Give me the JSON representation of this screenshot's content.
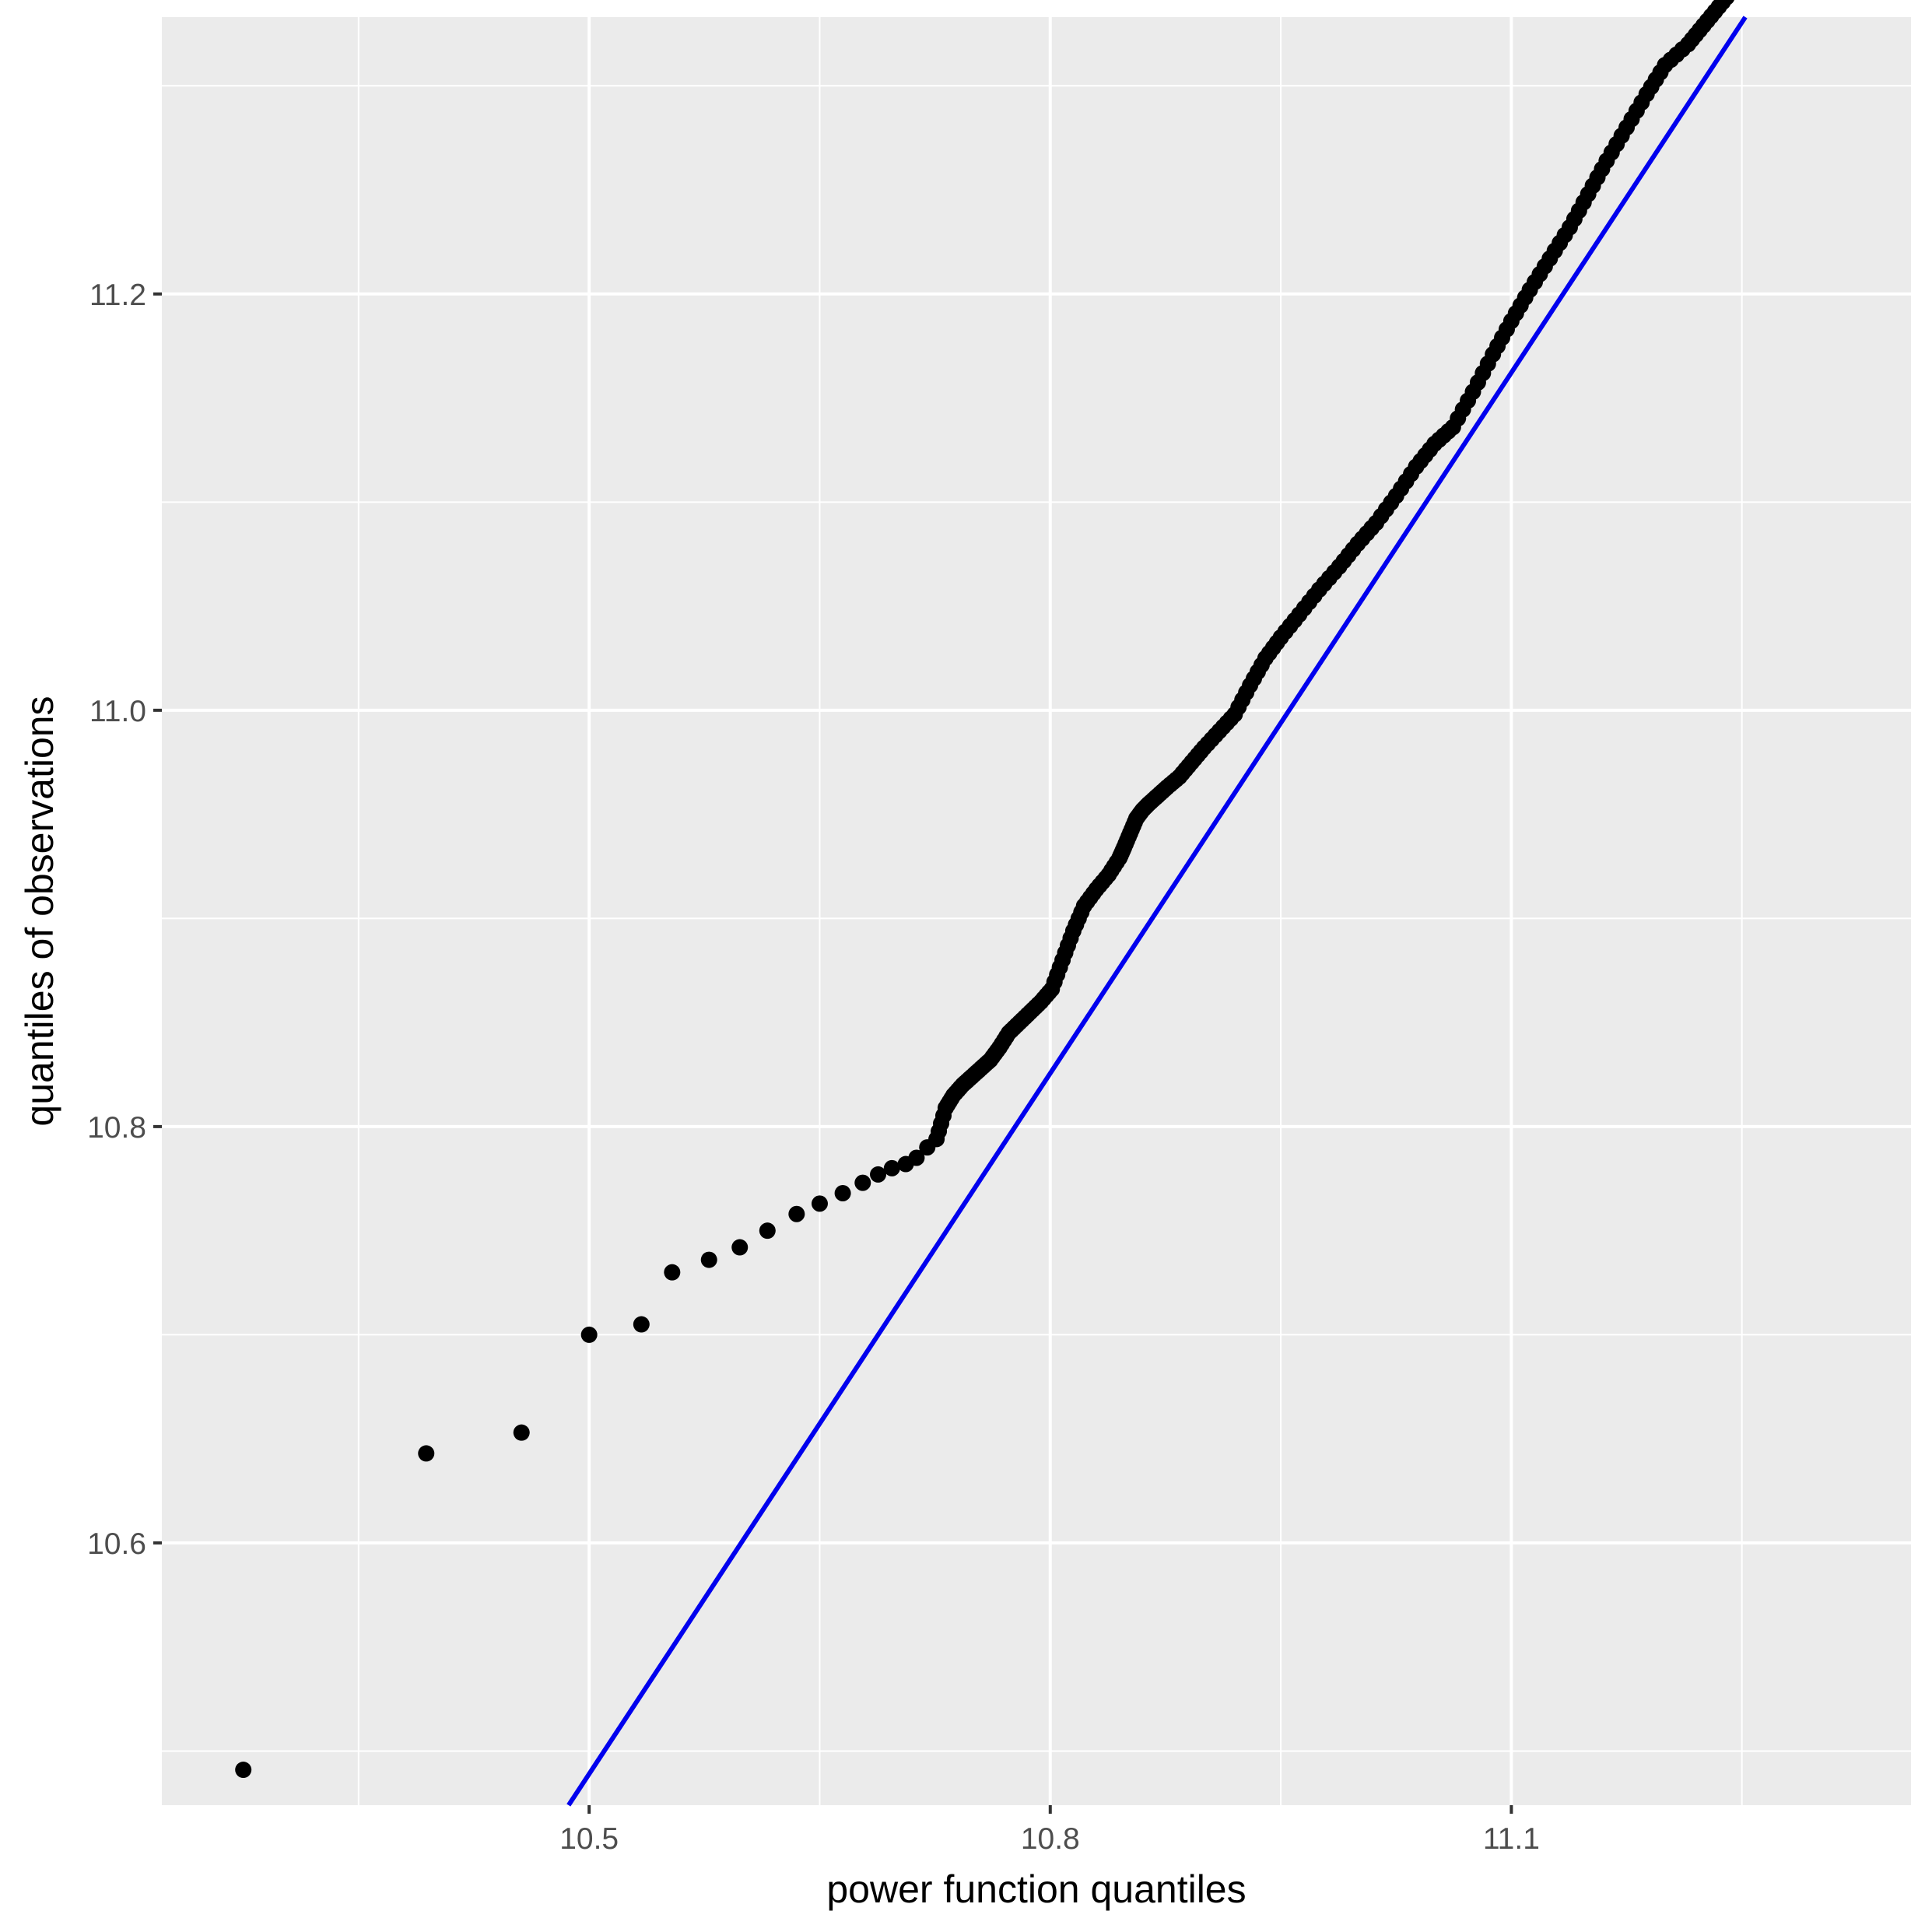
{
  "chart_data": {
    "type": "scatter",
    "title": "",
    "xlabel": "power function quantiles",
    "ylabel": "quantiles of observations",
    "xlim": [
      10.222,
      11.36
    ],
    "ylim": [
      10.474,
      11.333
    ],
    "x_ticks": [
      10.5,
      10.8,
      11.1
    ],
    "x_tick_labels": [
      "10.5",
      "10.8",
      "11.1"
    ],
    "y_ticks": [
      10.6,
      10.8,
      11.0,
      11.2
    ],
    "y_tick_labels": [
      "10.6",
      "10.8",
      "11.0",
      "11.2"
    ],
    "grid": true,
    "legend": "none",
    "colors": {
      "panel": "#ebebeb",
      "grid": "#ffffff",
      "points": "#000000",
      "reference_line": "#0000ee"
    },
    "reference_line": {
      "type": "abline",
      "slope": 1.122,
      "intercept": -1.292
    },
    "series": [
      {
        "values_x": [
          10.275,
          10.394,
          10.456,
          10.5,
          10.534,
          10.554,
          10.578,
          10.598,
          10.616,
          10.635,
          10.65,
          10.665,
          10.678,
          10.688,
          10.697,
          10.706,
          10.713,
          10.72,
          10.726,
          10.732,
          10.737,
          10.743,
          10.749,
          10.755,
          10.761,
          10.767,
          10.773,
          10.78,
          10.787,
          10.794,
          10.801,
          10.808,
          10.815,
          10.822,
          10.83,
          10.838,
          10.845,
          10.848,
          10.852,
          10.856,
          10.86,
          10.864,
          10.87,
          10.876,
          10.884,
          10.892,
          10.9,
          10.91,
          10.92,
          10.93,
          10.94,
          10.95,
          10.962,
          10.975,
          10.988,
          11.0,
          11.012,
          11.025,
          11.038,
          11.05,
          11.062,
          11.075,
          11.088,
          11.1,
          11.112,
          11.125,
          11.138,
          11.15,
          11.162,
          11.175,
          11.188,
          11.2,
          11.215,
          11.225,
          11.235,
          11.245
        ],
        "values_y": [
          10.491,
          10.643,
          10.653,
          10.7,
          10.705,
          10.73,
          10.736,
          10.742,
          10.75,
          10.758,
          10.763,
          10.768,
          10.773,
          10.777,
          10.78,
          10.782,
          10.785,
          10.79,
          10.794,
          10.809,
          10.815,
          10.82,
          10.824,
          10.828,
          10.832,
          10.838,
          10.845,
          10.85,
          10.855,
          10.86,
          10.866,
          10.88,
          10.894,
          10.906,
          10.914,
          10.921,
          10.929,
          10.934,
          10.941,
          10.948,
          10.952,
          10.955,
          10.959,
          10.963,
          10.968,
          10.975,
          10.982,
          10.99,
          10.998,
          11.012,
          11.025,
          11.035,
          11.046,
          11.058,
          11.069,
          11.08,
          11.09,
          11.103,
          11.117,
          11.128,
          11.136,
          11.153,
          11.171,
          11.187,
          11.202,
          11.217,
          11.232,
          11.248,
          11.264,
          11.28,
          11.296,
          11.31,
          11.32,
          11.329,
          11.338,
          11.347
        ]
      }
    ]
  }
}
